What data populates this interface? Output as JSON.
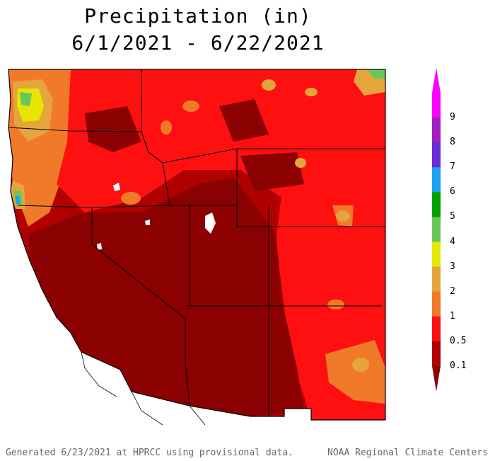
{
  "title": {
    "line1": "Precipitation (in)",
    "line2": "6/1/2021 - 6/22/2021"
  },
  "legend": {
    "bins": [
      {
        "label": "9",
        "color": "#ff00ff"
      },
      {
        "label": "8",
        "color": "#a020c0"
      },
      {
        "label": "7",
        "color": "#6a2bd9"
      },
      {
        "label": "6",
        "color": "#1ea0f0"
      },
      {
        "label": "5",
        "color": "#00a000"
      },
      {
        "label": "4",
        "color": "#66c85a"
      },
      {
        "label": "3",
        "color": "#e6e600"
      },
      {
        "label": "2",
        "color": "#e6a43c"
      },
      {
        "label": "1",
        "color": "#f07a2a"
      },
      {
        "label": "0.5",
        "color": "#ff1010"
      },
      {
        "label": "0.1",
        "color": "#b00000"
      }
    ],
    "bottom_color": "#8b0000"
  },
  "map_colors": {
    "driest": "#8b0000",
    "dry": "#b00000",
    "moderate": "#ff1010",
    "orange": "#f07a2a",
    "tan": "#e6a43c",
    "yellow": "#e6e600",
    "light_green": "#66c85a",
    "blue": "#1ea0f0"
  },
  "footer": {
    "left": "Generated 6/23/2021 at HPRCC using provisional data.",
    "right": "NOAA Regional Climate Centers"
  }
}
